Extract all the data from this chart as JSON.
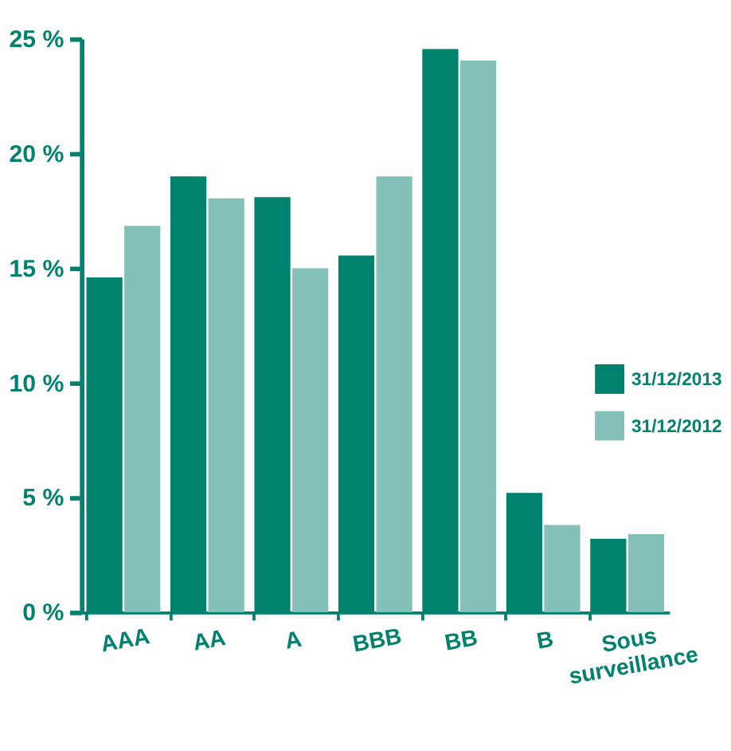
{
  "chart_data": {
    "type": "bar",
    "categories": [
      "AAA",
      "AA",
      "A",
      "BBB",
      "BB",
      "B",
      "Sous surveillance"
    ],
    "series": [
      {
        "name": "31/12/2013",
        "color": "#00826f",
        "values": [
          14.6,
          19.0,
          18.1,
          15.55,
          24.55,
          5.2,
          3.2
        ]
      },
      {
        "name": "31/12/2012",
        "color": "#82c0b8",
        "values": [
          16.85,
          18.05,
          15.0,
          19.0,
          24.05,
          3.8,
          3.4
        ]
      }
    ],
    "ylim": [
      0,
      25
    ],
    "yticks": [
      {
        "value": 0,
        "label": "0 %"
      },
      {
        "value": 5,
        "label": "5 %"
      },
      {
        "value": 10,
        "label": "10 %"
      },
      {
        "value": 15,
        "label": "15 %"
      },
      {
        "value": 20,
        "label": "20 %"
      },
      {
        "value": 25,
        "label": "25 %"
      }
    ],
    "grid": false,
    "legend": "right"
  }
}
